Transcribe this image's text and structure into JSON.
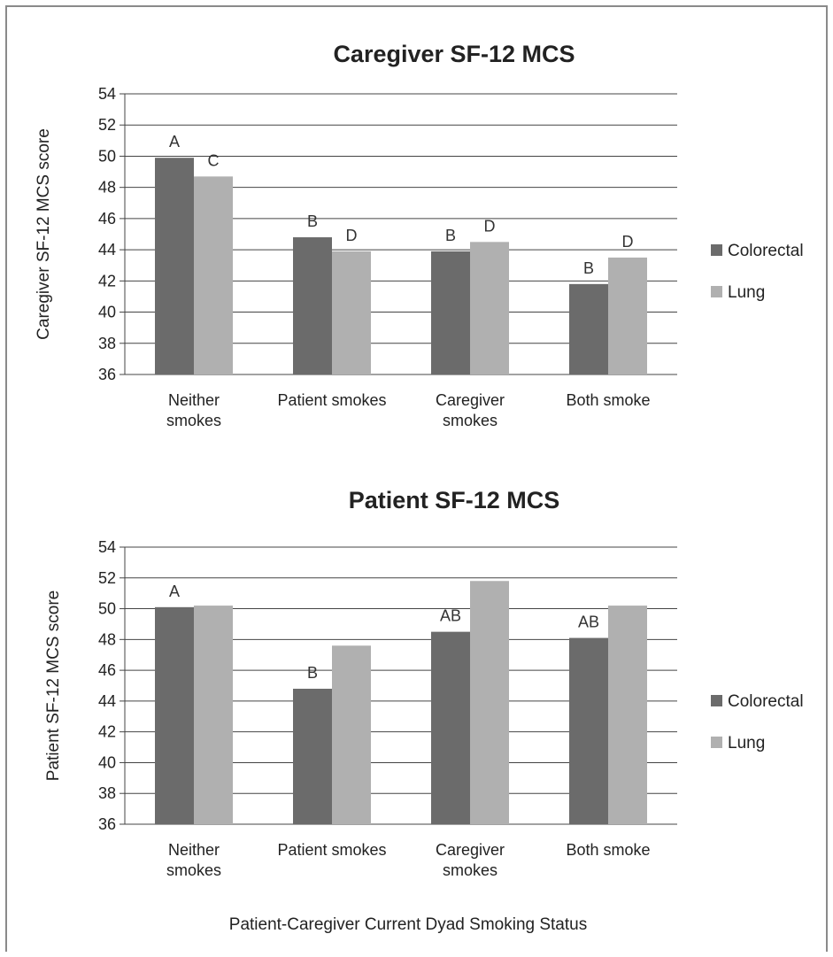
{
  "chart_data": [
    {
      "type": "bar",
      "title": "Caregiver SF-12 MCS",
      "ylabel": "Caregiver SF-12  MCS score",
      "xlabel": "",
      "categories": [
        [
          "Neither",
          "smokes"
        ],
        [
          "Patient smokes"
        ],
        [
          "Caregiver",
          "smokes"
        ],
        [
          "Both smoke"
        ]
      ],
      "ylim": [
        36,
        54
      ],
      "yticks": [
        36,
        38,
        40,
        42,
        44,
        46,
        48,
        50,
        52,
        54
      ],
      "grid": true,
      "legend": "right",
      "series": [
        {
          "name": "Colorectal",
          "color": "#6b6b6b",
          "values": [
            49.9,
            44.8,
            43.9,
            41.8
          ],
          "labels": [
            "A",
            "B",
            "B",
            "B"
          ]
        },
        {
          "name": "Lung",
          "color": "#b0b0b0",
          "values": [
            48.7,
            43.9,
            44.5,
            43.5
          ],
          "labels": [
            "C",
            "D",
            "D",
            "D"
          ]
        }
      ]
    },
    {
      "type": "bar",
      "title": "Patient SF-12 MCS",
      "ylabel": "Patient SF-12  MCS  score",
      "xlabel": "Patient-Caregiver Current Dyad Smoking Status",
      "categories": [
        [
          "Neither",
          "smokes"
        ],
        [
          "Patient smokes"
        ],
        [
          "Caregiver",
          "smokes"
        ],
        [
          "Both smoke"
        ]
      ],
      "ylim": [
        36,
        54
      ],
      "yticks": [
        36,
        38,
        40,
        42,
        44,
        46,
        48,
        50,
        52,
        54
      ],
      "grid": true,
      "legend": "right",
      "series": [
        {
          "name": "Colorectal",
          "color": "#6b6b6b",
          "values": [
            50.1,
            44.8,
            48.5,
            48.1
          ],
          "labels": [
            "A",
            "B",
            "AB",
            "AB"
          ]
        },
        {
          "name": "Lung",
          "color": "#b0b0b0",
          "values": [
            50.2,
            47.6,
            51.8,
            50.2
          ],
          "labels": [
            "",
            "",
            "",
            ""
          ]
        }
      ]
    }
  ]
}
